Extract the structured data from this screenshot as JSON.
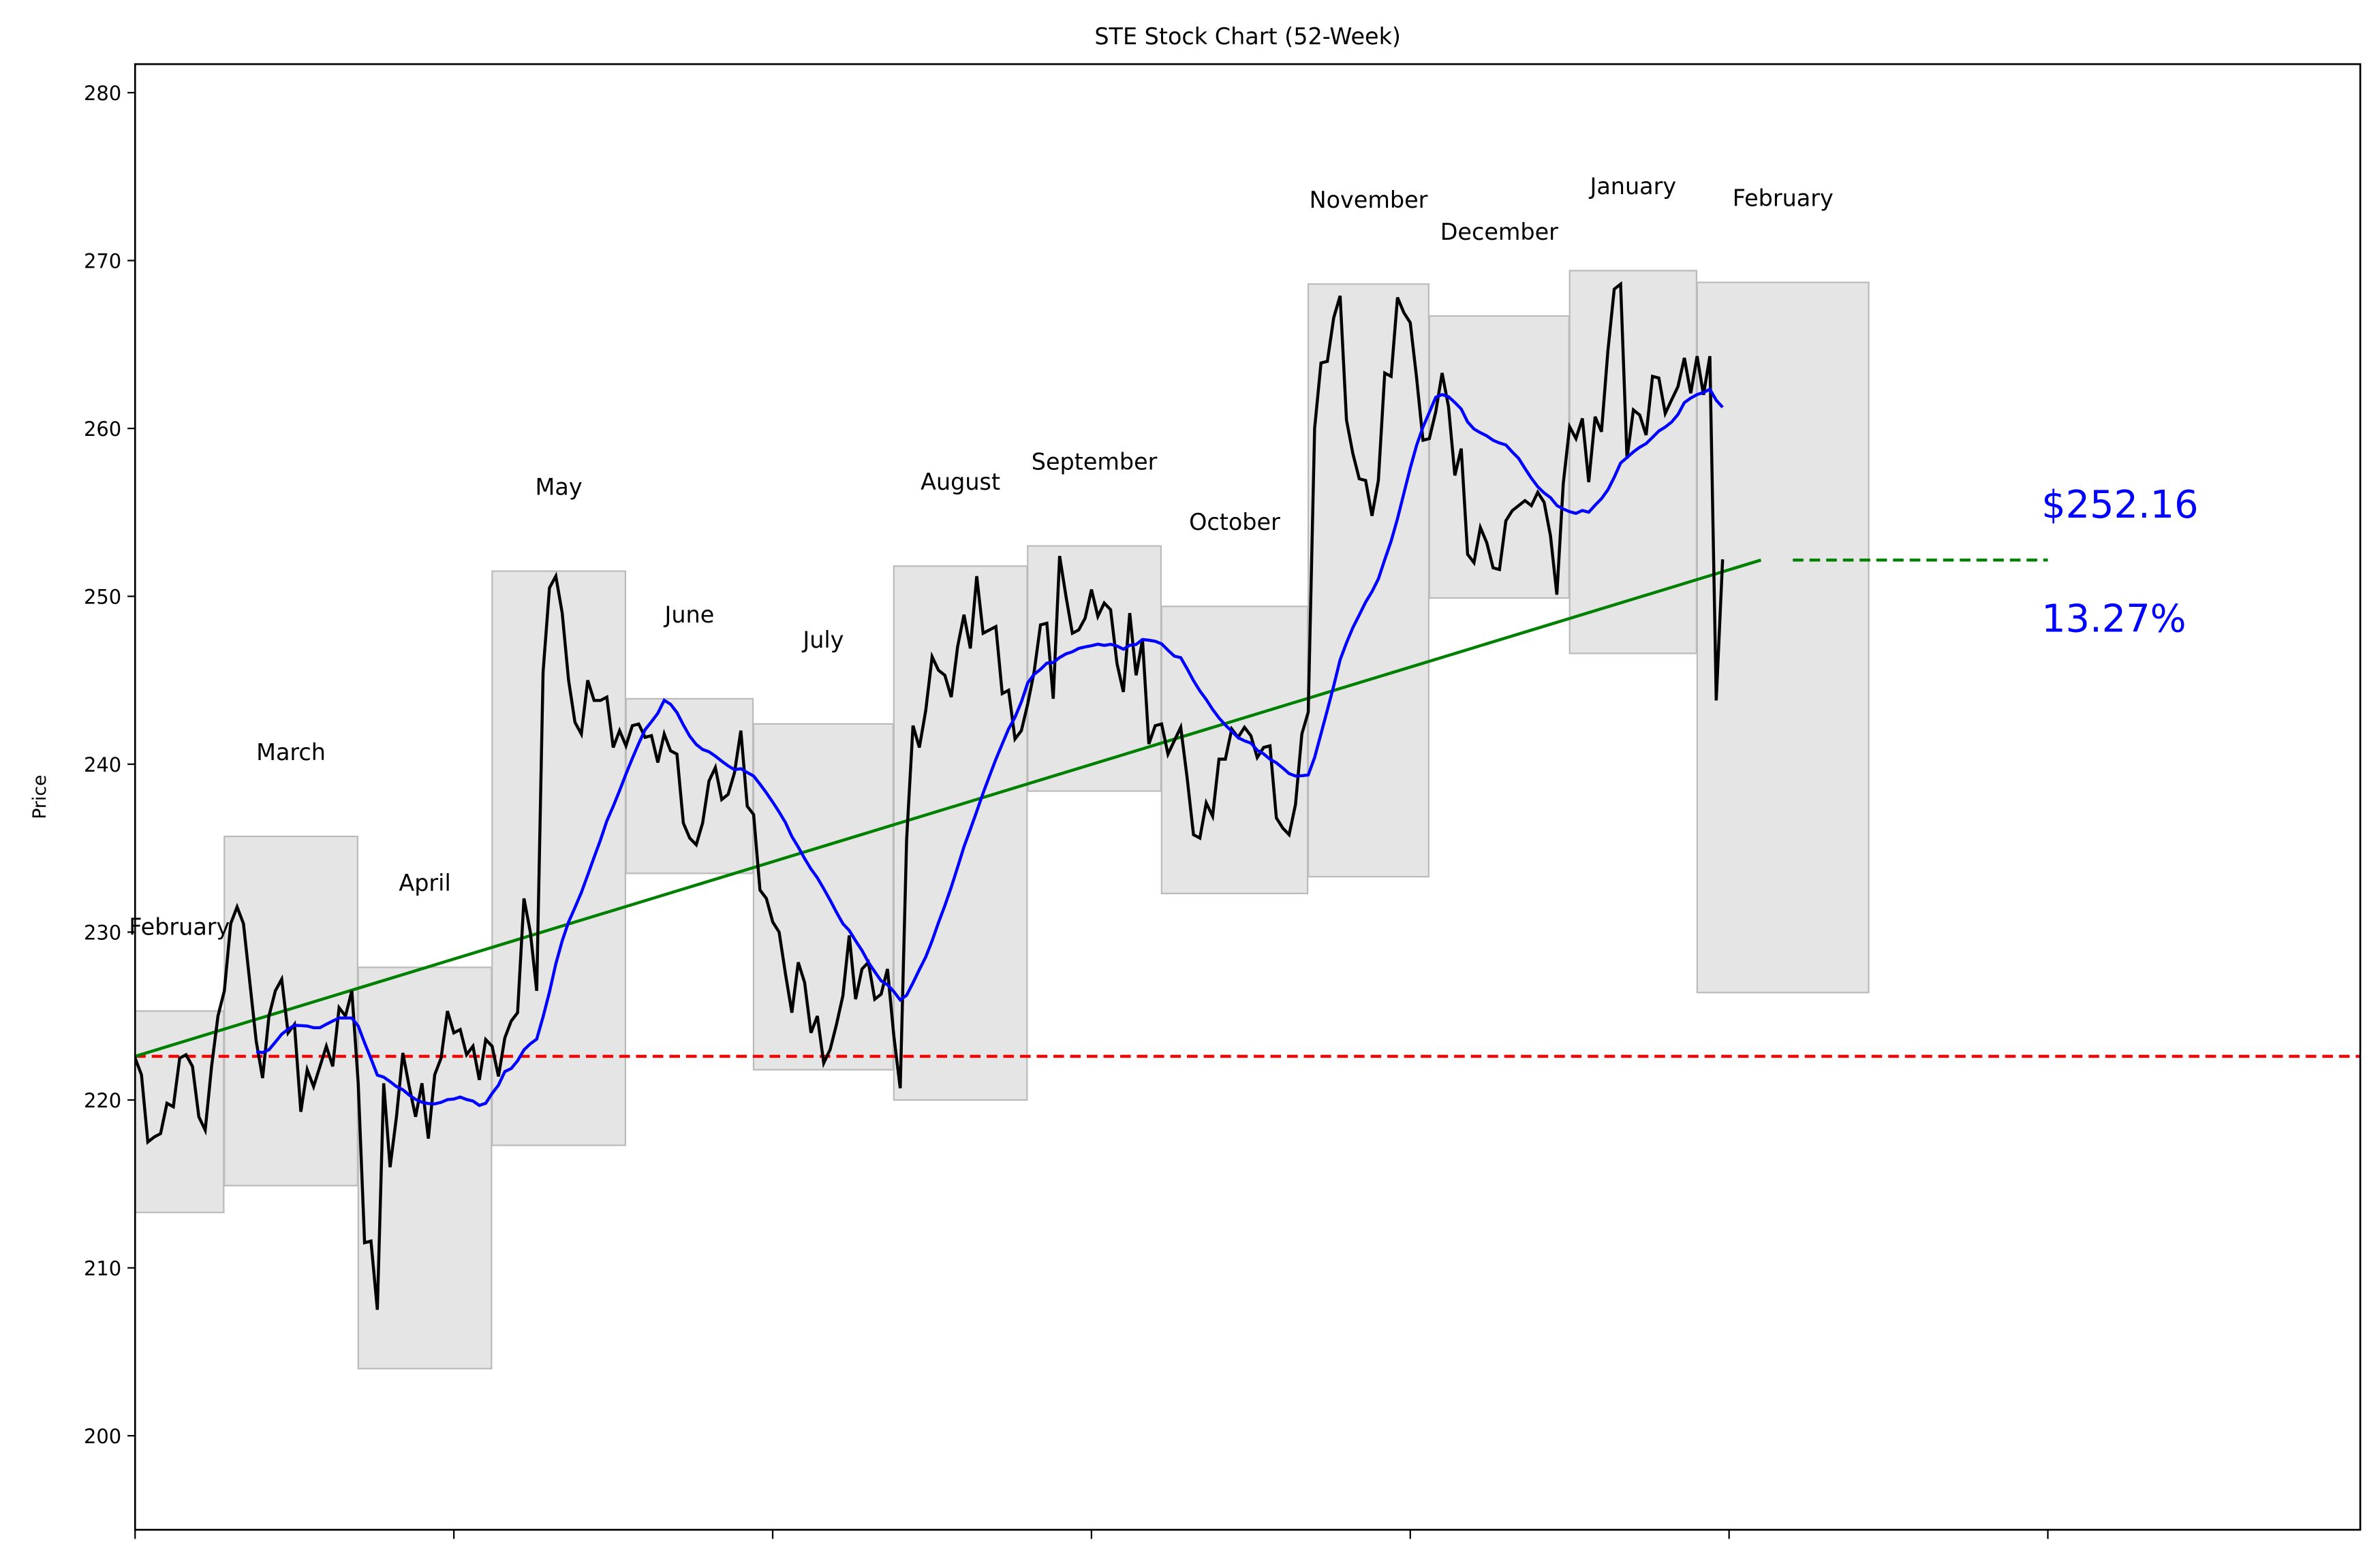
{
  "chart_data": {
    "type": "line",
    "title": "STE Stock Chart (52-Week)",
    "xlabel": "",
    "ylabel": "Price",
    "ylim": [
      194.4,
      281.7
    ],
    "xlim": [
      0,
      349
    ],
    "x_ticks": [
      0,
      50,
      100,
      150,
      200,
      250,
      300
    ],
    "y_ticks": [
      200,
      210,
      220,
      230,
      240,
      250,
      260,
      270,
      280
    ],
    "grid": false,
    "colors": {
      "price": "#000000",
      "moving_average": "#0000ff",
      "trend": "#008000",
      "baseline": "#ff0000",
      "month_box": "#d3d3d3",
      "annotation": "#0000ff"
    },
    "moving_average_window": 20,
    "prices": [
      222.5,
      221.5,
      217.5,
      217.8,
      218,
      219.8,
      219.6,
      222.5,
      222.7,
      222,
      219,
      218.2,
      222,
      225,
      226.5,
      230.5,
      231.5,
      230.5,
      227,
      223.5,
      221.3,
      225,
      226.5,
      227.2,
      224,
      224.5,
      219.3,
      221.8,
      220.8,
      222,
      223.2,
      222,
      225.5,
      225,
      226.5,
      221,
      211.5,
      211.6,
      207.5,
      221,
      216,
      219,
      222.8,
      220.8,
      219,
      221,
      217.7,
      221.5,
      222.5,
      225.3,
      224,
      224.2,
      222.7,
      223.2,
      221.2,
      223.6,
      223.2,
      221.4,
      223.7,
      224.7,
      225.2,
      232,
      230,
      226.5,
      245.5,
      250.5,
      251.2,
      249,
      245,
      242.5,
      241.8,
      245,
      243.8,
      243.8,
      244,
      241,
      242,
      241.1,
      242.3,
      242.4,
      241.6,
      241.7,
      240.1,
      241.8,
      240.8,
      240.6,
      236.5,
      235.6,
      235.2,
      236.5,
      239,
      239.8,
      237.9,
      238.2,
      239.5,
      242,
      237.5,
      237,
      232.5,
      232,
      230.6,
      230,
      227.5,
      225.2,
      228.2,
      227,
      224,
      225,
      222.2,
      223,
      224.5,
      226.2,
      229.8,
      226,
      227.8,
      228.2,
      226,
      226.3,
      227.8,
      223.8,
      220.7,
      235.5,
      242.3,
      241,
      243.2,
      246.4,
      245.6,
      245.3,
      244,
      247,
      248.9,
      246.9,
      251.2,
      247.8,
      248,
      248.2,
      244.2,
      244.4,
      241.5,
      242,
      243.6,
      245.5,
      248.3,
      248.4,
      243.9,
      252.4,
      250,
      247.8,
      248,
      248.7,
      250.4,
      248.8,
      249.6,
      249.2,
      246,
      244.3,
      249,
      245.3,
      247.4,
      241.2,
      242.3,
      242.4,
      240.6,
      241.4,
      242.2,
      239.2,
      235.8,
      235.6,
      237.7,
      236.9,
      240.3,
      240.3,
      242.1,
      241.6,
      242.2,
      241.7,
      240.4,
      241,
      241.1,
      236.8,
      236.2,
      235.8,
      237.6,
      241.8,
      243.1,
      260,
      263.9,
      264,
      266.6,
      267.9,
      260.5,
      258.5,
      257,
      256.9,
      254.8,
      256.9,
      263.3,
      263.1,
      267.8,
      266.9,
      266.3,
      263,
      259.3,
      259.4,
      261,
      263.3,
      261.3,
      257.2,
      258.8,
      252.5,
      252,
      254.1,
      253.2,
      251.7,
      251.6,
      254.5,
      255.1,
      255.4,
      255.7,
      255.4,
      256.2,
      255.6,
      253.6,
      250.1,
      256.7,
      260.1,
      259.4,
      260.6,
      256.8,
      260.7,
      259.8,
      264.6,
      268.3,
      268.6,
      258.2,
      261.1,
      260.8,
      259.6,
      263.1,
      263,
      260.9,
      261.7,
      262.5,
      264.2,
      262.1,
      264.3,
      262,
      264.3,
      243.8,
      252.2
    ],
    "baseline_price": 222.6,
    "trend_line": {
      "start": [
        0,
        222.6
      ],
      "end": [
        255,
        252.16
      ]
    },
    "target_line": {
      "from": 260,
      "to": 300,
      "value": 252.16
    },
    "months": [
      {
        "label": "February",
        "start": 0,
        "end": 13,
        "low": 213.3,
        "high": 225.3
      },
      {
        "label": "March",
        "start": 14,
        "end": 34,
        "low": 214.9,
        "high": 235.7
      },
      {
        "label": "April",
        "start": 35,
        "end": 55,
        "low": 204.0,
        "high": 227.9
      },
      {
        "label": "May",
        "start": 56,
        "end": 76,
        "low": 217.3,
        "high": 251.5
      },
      {
        "label": "June",
        "start": 77,
        "end": 96,
        "low": 233.5,
        "high": 243.9
      },
      {
        "label": "July",
        "start": 97,
        "end": 118,
        "low": 221.8,
        "high": 242.4
      },
      {
        "label": "August",
        "start": 119,
        "end": 139,
        "low": 220.0,
        "high": 251.8
      },
      {
        "label": "September",
        "start": 140,
        "end": 160,
        "low": 238.4,
        "high": 253.0
      },
      {
        "label": "October",
        "start": 161,
        "end": 183,
        "low": 232.3,
        "high": 249.4
      },
      {
        "label": "November",
        "start": 184,
        "end": 202,
        "low": 233.3,
        "high": 268.6
      },
      {
        "label": "December",
        "start": 203,
        "end": 224,
        "low": 249.9,
        "high": 266.7
      },
      {
        "label": "January",
        "start": 225,
        "end": 244,
        "low": 246.6,
        "high": 269.4
      },
      {
        "label": "February",
        "start": 245,
        "end": 271,
        "low": 226.4,
        "high": 268.7
      }
    ],
    "annotations": {
      "price": "$252.16",
      "change": "13.27%"
    }
  }
}
